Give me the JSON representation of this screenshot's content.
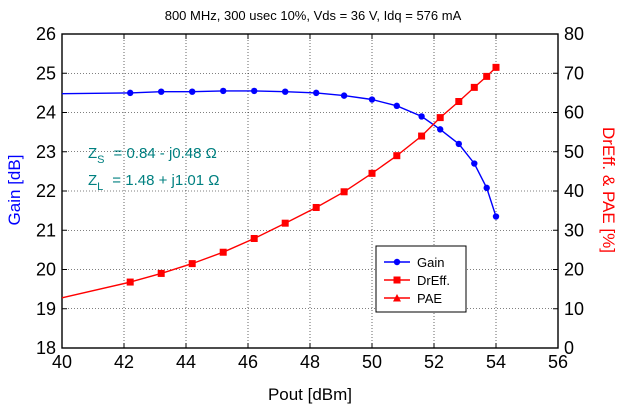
{
  "chart_data": {
    "type": "line",
    "title": "800 MHz, 300 usec 10%, Vds = 36 V, Idq = 576 mA",
    "xlabel": "Pout [dBm]",
    "ylabel_left": "Gain [dB]",
    "ylabel_right": "DrEff. & PAE [%]",
    "xlim": [
      40,
      56
    ],
    "ylim_left": [
      18,
      26
    ],
    "ylim_right": [
      0,
      80
    ],
    "x_ticks": [
      "40",
      "42",
      "44",
      "46",
      "48",
      "50",
      "52",
      "54",
      "56"
    ],
    "y_ticks_left": [
      "18",
      "19",
      "20",
      "21",
      "22",
      "23",
      "24",
      "25",
      "26"
    ],
    "y_ticks_right": [
      "0",
      "10",
      "20",
      "30",
      "40",
      "50",
      "60",
      "70",
      "80"
    ],
    "grid": true,
    "legend": "center-right",
    "colors": {
      "gain": "#0000ff",
      "dreff": "#ff0000",
      "pae": "#ff0000",
      "annotation": "#008080"
    },
    "annotations": {
      "zs_sym": "Z",
      "zs_sub": "S",
      "zs_val": "=  0.84 - j0.48  Ω",
      "zl_sym": "Z",
      "zl_sub": "L",
      "zl_val": "=  1.48 + j1.01  Ω"
    },
    "series": [
      {
        "name": "Gain",
        "axis": "left",
        "marker": "circle",
        "x": [
          40,
          42.2,
          43.2,
          44.2,
          45.2,
          46.2,
          47.2,
          48.2,
          49.1,
          50.0,
          50.8,
          51.6,
          52.2,
          52.8,
          53.3,
          53.7,
          54.0
        ],
        "y": [
          24.48,
          24.5,
          24.53,
          24.53,
          24.55,
          24.55,
          24.53,
          24.5,
          24.43,
          24.33,
          24.17,
          23.9,
          23.57,
          23.2,
          22.7,
          22.08,
          21.35
        ],
        "markers_from_index": 1
      },
      {
        "name": "DrEff.",
        "axis": "right",
        "marker": "square",
        "x": [
          40,
          42.2,
          43.2,
          44.2,
          45.2,
          46.2,
          47.2,
          48.2,
          49.1,
          50.0,
          50.8,
          51.6,
          52.2,
          52.8,
          53.3,
          53.7,
          54.0
        ],
        "y": [
          12.8,
          16.8,
          19.0,
          21.5,
          24.4,
          27.9,
          31.8,
          35.8,
          39.8,
          44.5,
          49.0,
          54.0,
          58.7,
          62.8,
          66.4,
          69.2,
          71.5
        ],
        "markers_from_index": 1
      },
      {
        "name": "PAE",
        "axis": "right",
        "marker": "triangle",
        "x": [],
        "y": []
      }
    ]
  }
}
